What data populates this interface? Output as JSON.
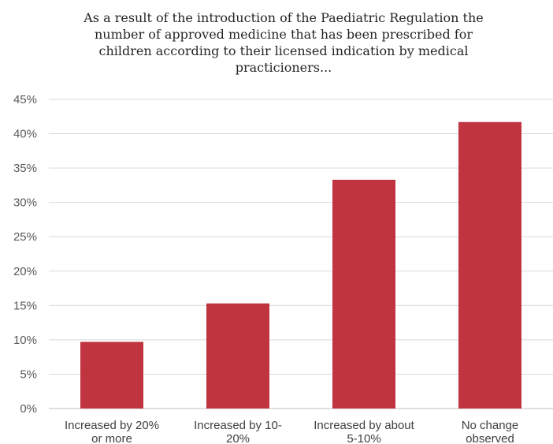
{
  "chart_data": {
    "type": "bar",
    "title_lines": [
      "As a result of the introduction of the Paediatric Regulation the",
      "number of approved medicine that has been prescribed for",
      "children according to their licensed indication by medical",
      "practicioners..."
    ],
    "categories": [
      [
        "Increased by 20%",
        "or more"
      ],
      [
        "Increased by 10-",
        "20%"
      ],
      [
        "Increased by about",
        "5-10%"
      ],
      [
        "No change",
        "observed"
      ]
    ],
    "values": [
      0.097,
      0.153,
      0.333,
      0.417
    ],
    "ylim": [
      0,
      0.45
    ],
    "yticks": [
      0,
      0.05,
      0.1,
      0.15,
      0.2,
      0.25,
      0.3,
      0.35,
      0.4,
      0.45
    ],
    "ytick_labels": [
      "0%",
      "5%",
      "10%",
      "15%",
      "20%",
      "25%",
      "30%",
      "35%",
      "40%",
      "45%"
    ],
    "bar_color": "#c0343f",
    "grid": true,
    "legend": "none"
  }
}
